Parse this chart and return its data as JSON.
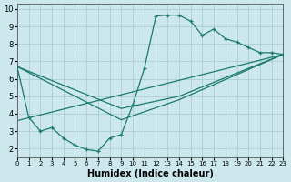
{
  "xlabel": "Humidex (Indice chaleur)",
  "xlim": [
    0,
    23
  ],
  "ylim": [
    1.5,
    10.3
  ],
  "xtick_labels": [
    "0",
    "1",
    "2",
    "3",
    "4",
    "5",
    "6",
    "7",
    "8",
    "9",
    "10",
    "11",
    "12",
    "13",
    "14",
    "15",
    "16",
    "17",
    "18",
    "19",
    "20",
    "21",
    "22",
    "23"
  ],
  "ytick_labels": [
    "2",
    "3",
    "4",
    "5",
    "6",
    "7",
    "8",
    "9",
    "10"
  ],
  "ytick_vals": [
    2,
    3,
    4,
    5,
    6,
    7,
    8,
    9,
    10
  ],
  "bg_color": "#cce8ed",
  "grid_color": "#aacdd4",
  "line_color": "#1a7a6e",
  "line1_x": [
    0,
    1,
    2,
    3,
    4,
    5,
    6,
    7,
    8,
    9,
    10,
    11,
    12,
    13,
    14,
    15,
    16,
    17,
    18,
    19,
    20,
    21,
    22,
    23
  ],
  "line1_y": [
    6.7,
    3.8,
    3.0,
    3.2,
    2.6,
    2.2,
    1.95,
    1.85,
    2.6,
    2.8,
    4.5,
    6.6,
    9.6,
    9.65,
    9.65,
    9.3,
    8.5,
    8.85,
    8.3,
    8.1,
    7.8,
    7.5,
    7.5,
    7.4
  ],
  "line2_x": [
    0,
    23
  ],
  "line2_y": [
    3.6,
    7.4
  ],
  "line3_x": [
    0,
    9,
    14,
    23
  ],
  "line3_y": [
    6.7,
    4.3,
    5.0,
    7.4
  ],
  "line4_x": [
    0,
    9,
    14,
    23
  ],
  "line4_y": [
    6.7,
    3.65,
    4.8,
    7.4
  ]
}
